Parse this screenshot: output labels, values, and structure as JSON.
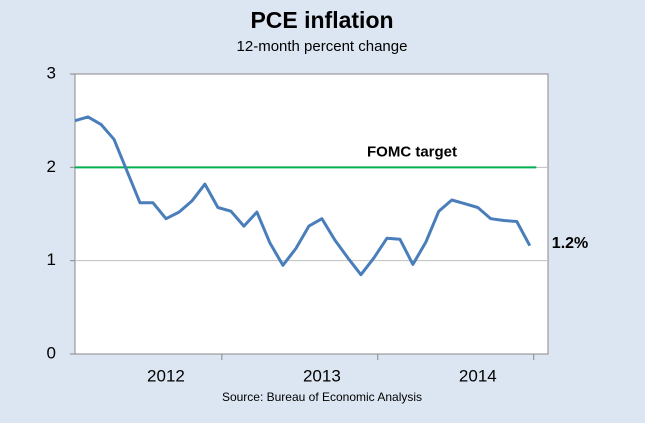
{
  "chart_data": {
    "type": "line",
    "title": "PCE inflation",
    "subtitle": "12-month percent change",
    "source": "Source: Bureau of Economic Analysis",
    "categories": [
      null,
      null,
      null,
      null,
      null,
      null,
      null,
      "2012",
      null,
      null,
      null,
      null,
      null,
      null,
      null,
      null,
      null,
      null,
      null,
      "2013",
      null,
      null,
      null,
      null,
      null,
      null,
      null,
      null,
      null,
      null,
      null,
      "2014",
      null,
      null,
      null,
      null
    ],
    "series": [
      {
        "name": "PCE inflation",
        "color": "#4a7ebb",
        "values": [
          2.5,
          2.54,
          2.46,
          2.3,
          1.96,
          1.62,
          1.62,
          1.45,
          1.52,
          1.64,
          1.82,
          1.57,
          1.53,
          1.37,
          1.52,
          1.19,
          0.95,
          1.13,
          1.37,
          1.45,
          1.22,
          1.03,
          0.85,
          1.03,
          1.24,
          1.23,
          0.96,
          1.2,
          1.53,
          1.65,
          1.61,
          1.57,
          1.45,
          1.43,
          1.42,
          1.16
        ],
        "value_labels": [
          null,
          null,
          null,
          null,
          null,
          null,
          null,
          null,
          null,
          null,
          null,
          null,
          null,
          null,
          null,
          null,
          null,
          null,
          null,
          null,
          null,
          null,
          null,
          null,
          null,
          null,
          null,
          null,
          null,
          null,
          null,
          null,
          null,
          null,
          null,
          "1.2%"
        ]
      }
    ],
    "target": {
      "label": "FOMC target",
      "value": 2,
      "color": "#00b050"
    },
    "ylim": [
      0,
      3
    ],
    "yticks": [
      0,
      1,
      2,
      3
    ],
    "grid": true
  }
}
